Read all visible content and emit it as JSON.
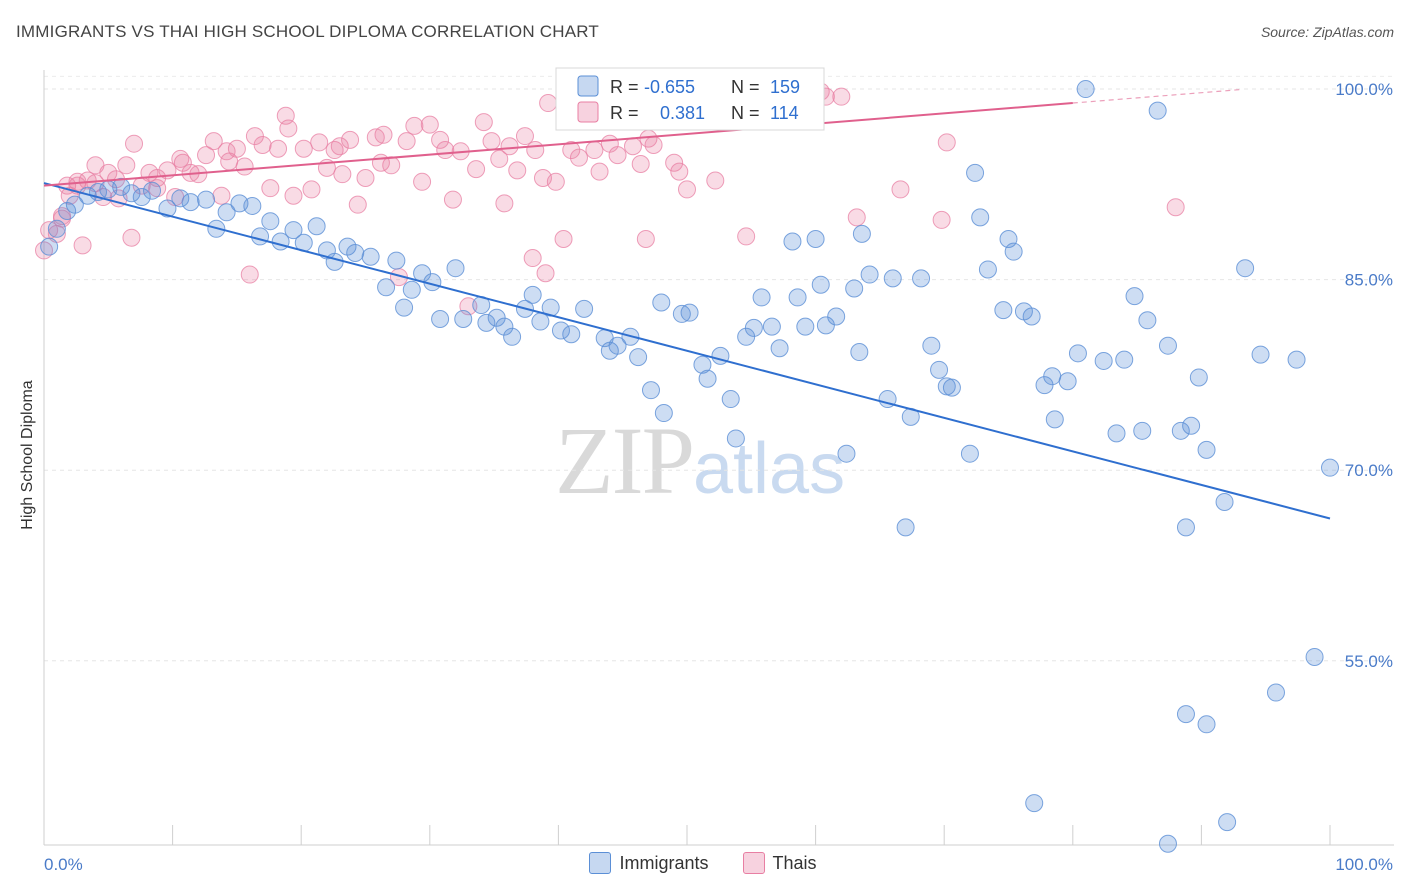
{
  "header": {
    "title": "IMMIGRANTS VS THAI HIGH SCHOOL DIPLOMA CORRELATION CHART",
    "source": "Source: ZipAtlas.com"
  },
  "watermark": {
    "zip": "ZIP",
    "atlas": "atlas"
  },
  "colors": {
    "immigrants": "#5b8fd6",
    "thais": "#e87fa3",
    "immigrants_line": "#2f6fcf",
    "thais_line": "#e0608d",
    "tick": "#4a7bc8"
  },
  "legend": {
    "immigrants": {
      "r_label": "R =",
      "r_value": "-0.655",
      "n_label": "N =",
      "n_value": "159"
    },
    "thais": {
      "r_label": "R =",
      "r_value": "0.381",
      "n_label": "N =",
      "n_value": "114"
    }
  },
  "bottom_legend": {
    "immigrants": "Immigrants",
    "thais": "Thais"
  },
  "chart_data": {
    "type": "scatter",
    "title": "IMMIGRANTS VS THAI HIGH SCHOOL DIPLOMA CORRELATION CHART",
    "xlabel": "",
    "ylabel": "High School Diploma",
    "xlim": [
      0,
      100
    ],
    "ylim": [
      40.5,
      101.5
    ],
    "x_tick_labels": [
      "0.0%",
      "100.0%"
    ],
    "y_ticks": [
      100,
      85,
      70,
      55
    ],
    "y_tick_labels": [
      "100.0%",
      "85.0%",
      "70.0%",
      "55.0%"
    ],
    "grid": true,
    "legend_position": "top-center",
    "series": [
      {
        "name": "Immigrants",
        "r": -0.655,
        "n": 159,
        "trend": {
          "x": [
            0,
            100
          ],
          "y": [
            92.6,
            66.2
          ]
        },
        "points": [
          [
            0.4,
            87.6
          ],
          [
            1.0,
            89.0
          ],
          [
            1.8,
            90.4
          ],
          [
            2.4,
            90.9
          ],
          [
            3.4,
            91.6
          ],
          [
            4.2,
            91.9
          ],
          [
            5.0,
            92.1
          ],
          [
            6.0,
            92.3
          ],
          [
            6.8,
            91.8
          ],
          [
            7.6,
            91.5
          ],
          [
            8.4,
            92.0
          ],
          [
            9.6,
            90.6
          ],
          [
            10.6,
            91.4
          ],
          [
            11.4,
            91.1
          ],
          [
            12.6,
            91.3
          ],
          [
            13.4,
            89.0
          ],
          [
            14.2,
            90.3
          ],
          [
            15.2,
            91.0
          ],
          [
            16.2,
            90.8
          ],
          [
            16.8,
            88.4
          ],
          [
            17.6,
            89.6
          ],
          [
            18.4,
            88.0
          ],
          [
            19.4,
            88.9
          ],
          [
            20.2,
            87.9
          ],
          [
            21.2,
            89.2
          ],
          [
            22.0,
            87.3
          ],
          [
            22.6,
            86.4
          ],
          [
            23.6,
            87.6
          ],
          [
            24.2,
            87.1
          ],
          [
            25.4,
            86.8
          ],
          [
            26.6,
            84.4
          ],
          [
            27.4,
            86.5
          ],
          [
            28.6,
            84.2
          ],
          [
            28.0,
            82.8
          ],
          [
            29.4,
            85.5
          ],
          [
            30.2,
            84.8
          ],
          [
            30.8,
            81.9
          ],
          [
            32.0,
            85.9
          ],
          [
            32.6,
            81.9
          ],
          [
            34.0,
            83.0
          ],
          [
            34.4,
            81.6
          ],
          [
            35.2,
            82.0
          ],
          [
            35.8,
            81.3
          ],
          [
            36.4,
            80.5
          ],
          [
            37.4,
            82.7
          ],
          [
            38.0,
            83.8
          ],
          [
            38.6,
            81.7
          ],
          [
            39.4,
            82.8
          ],
          [
            40.2,
            81.0
          ],
          [
            41.0,
            80.7
          ],
          [
            42.0,
            82.7
          ],
          [
            43.6,
            80.4
          ],
          [
            44.0,
            79.4
          ],
          [
            44.6,
            79.8
          ],
          [
            45.6,
            80.5
          ],
          [
            46.2,
            78.9
          ],
          [
            47.2,
            76.3
          ],
          [
            48.0,
            83.2
          ],
          [
            48.2,
            74.5
          ],
          [
            49.6,
            82.3
          ],
          [
            50.2,
            82.4
          ],
          [
            51.2,
            78.3
          ],
          [
            51.6,
            77.2
          ],
          [
            52.6,
            79.0
          ],
          [
            53.4,
            75.6
          ],
          [
            53.8,
            72.5
          ],
          [
            54.6,
            80.5
          ],
          [
            55.2,
            81.2
          ],
          [
            55.8,
            83.6
          ],
          [
            56.6,
            81.3
          ],
          [
            57.2,
            79.6
          ],
          [
            58.2,
            88.0
          ],
          [
            58.6,
            83.6
          ],
          [
            59.2,
            81.3
          ],
          [
            60.0,
            88.2
          ],
          [
            60.4,
            84.6
          ],
          [
            60.8,
            81.4
          ],
          [
            61.6,
            82.1
          ],
          [
            62.4,
            71.3
          ],
          [
            63.0,
            84.3
          ],
          [
            63.4,
            79.3
          ],
          [
            63.6,
            88.6
          ],
          [
            64.2,
            85.4
          ],
          [
            65.6,
            75.6
          ],
          [
            66.0,
            85.1
          ],
          [
            67.0,
            65.5
          ],
          [
            67.4,
            74.2
          ],
          [
            68.2,
            85.1
          ],
          [
            69.0,
            79.8
          ],
          [
            69.6,
            77.9
          ],
          [
            70.2,
            76.6
          ],
          [
            70.6,
            76.5
          ],
          [
            72.0,
            71.3
          ],
          [
            72.4,
            93.4
          ],
          [
            72.8,
            89.9
          ],
          [
            73.4,
            85.8
          ],
          [
            74.6,
            82.6
          ],
          [
            75.0,
            88.2
          ],
          [
            75.4,
            87.2
          ],
          [
            76.2,
            82.5
          ],
          [
            76.8,
            82.1
          ],
          [
            77.8,
            76.7
          ],
          [
            78.4,
            77.4
          ],
          [
            78.6,
            74.0
          ],
          [
            79.6,
            77.0
          ],
          [
            80.4,
            79.2
          ],
          [
            81.0,
            100.0
          ],
          [
            82.4,
            78.6
          ],
          [
            83.4,
            72.9
          ],
          [
            84.0,
            78.7
          ],
          [
            84.8,
            83.7
          ],
          [
            85.4,
            73.1
          ],
          [
            85.8,
            81.8
          ],
          [
            86.6,
            98.3
          ],
          [
            87.4,
            79.8
          ],
          [
            88.4,
            73.1
          ],
          [
            88.8,
            65.5
          ],
          [
            89.2,
            73.5
          ],
          [
            89.8,
            77.3
          ],
          [
            90.4,
            71.6
          ],
          [
            91.8,
            67.5
          ],
          [
            93.4,
            85.9
          ],
          [
            94.6,
            79.1
          ],
          [
            97.4,
            78.7
          ],
          [
            100.0,
            70.2
          ],
          [
            77.0,
            43.8
          ],
          [
            87.4,
            40.6
          ],
          [
            88.8,
            50.8
          ],
          [
            90.4,
            50.0
          ],
          [
            92.0,
            42.3
          ],
          [
            95.8,
            52.5
          ],
          [
            98.8,
            55.3
          ]
        ]
      },
      {
        "name": "Thais",
        "r": 0.381,
        "n": 114,
        "trend": {
          "x": [
            0,
            80
          ],
          "y": [
            92.4,
            98.9
          ]
        },
        "points": [
          [
            0.0,
            87.3
          ],
          [
            0.4,
            88.9
          ],
          [
            1.0,
            88.6
          ],
          [
            1.4,
            89.8
          ],
          [
            2.0,
            91.6
          ],
          [
            2.6,
            92.4
          ],
          [
            3.0,
            87.7
          ],
          [
            3.4,
            92.8
          ],
          [
            4.0,
            92.6
          ],
          [
            4.6,
            91.5
          ],
          [
            5.0,
            93.4
          ],
          [
            5.6,
            92.9
          ],
          [
            6.4,
            94.0
          ],
          [
            7.0,
            95.7
          ],
          [
            7.6,
            92.4
          ],
          [
            8.2,
            93.4
          ],
          [
            8.8,
            93.0
          ],
          [
            9.6,
            93.6
          ],
          [
            10.2,
            91.5
          ],
          [
            10.8,
            94.2
          ],
          [
            11.4,
            93.4
          ],
          [
            12.0,
            93.3
          ],
          [
            12.6,
            94.8
          ],
          [
            13.2,
            95.9
          ],
          [
            13.8,
            91.6
          ],
          [
            14.4,
            94.3
          ],
          [
            15.0,
            95.3
          ],
          [
            15.6,
            93.9
          ],
          [
            16.4,
            96.3
          ],
          [
            17.0,
            95.6
          ],
          [
            17.6,
            92.2
          ],
          [
            18.2,
            95.3
          ],
          [
            18.8,
            97.9
          ],
          [
            19.4,
            91.6
          ],
          [
            20.2,
            95.3
          ],
          [
            20.8,
            92.1
          ],
          [
            21.4,
            95.8
          ],
          [
            22.0,
            93.8
          ],
          [
            22.6,
            95.2
          ],
          [
            23.2,
            93.3
          ],
          [
            23.8,
            96.0
          ],
          [
            24.4,
            90.9
          ],
          [
            25.0,
            93.0
          ],
          [
            25.8,
            96.2
          ],
          [
            26.4,
            96.4
          ],
          [
            27.0,
            94.0
          ],
          [
            27.6,
            85.2
          ],
          [
            28.2,
            95.9
          ],
          [
            28.8,
            97.1
          ],
          [
            29.4,
            92.7
          ],
          [
            30.0,
            97.2
          ],
          [
            30.8,
            96.0
          ],
          [
            31.2,
            95.2
          ],
          [
            31.8,
            91.3
          ],
          [
            32.4,
            95.1
          ],
          [
            33.0,
            82.9
          ],
          [
            33.6,
            93.7
          ],
          [
            34.2,
            97.4
          ],
          [
            34.8,
            95.9
          ],
          [
            35.4,
            94.5
          ],
          [
            36.2,
            95.5
          ],
          [
            36.8,
            93.6
          ],
          [
            37.4,
            96.3
          ],
          [
            38.2,
            95.2
          ],
          [
            38.8,
            93.0
          ],
          [
            39.2,
            98.9
          ],
          [
            39.8,
            92.7
          ],
          [
            40.4,
            88.2
          ],
          [
            41.0,
            95.2
          ],
          [
            41.6,
            94.6
          ],
          [
            42.2,
            97.6
          ],
          [
            42.8,
            95.2
          ],
          [
            43.4,
            98.6
          ],
          [
            44.0,
            95.7
          ],
          [
            44.6,
            94.8
          ],
          [
            45.2,
            99.8
          ],
          [
            45.8,
            95.5
          ],
          [
            46.4,
            94.1
          ],
          [
            47.0,
            96.1
          ],
          [
            47.4,
            95.6
          ],
          [
            48.4,
            99.1
          ],
          [
            49.0,
            94.2
          ],
          [
            50.0,
            92.1
          ],
          [
            51.0,
            98.0
          ],
          [
            53.0,
            99.0
          ],
          [
            58.6,
            99.5
          ],
          [
            60.4,
            99.8
          ],
          [
            60.8,
            99.4
          ],
          [
            66.6,
            92.1
          ],
          [
            69.8,
            89.7
          ],
          [
            70.2,
            95.8
          ],
          [
            23.0,
            95.5
          ],
          [
            19.0,
            96.9
          ],
          [
            14.2,
            95.1
          ],
          [
            10.6,
            94.5
          ],
          [
            8.8,
            92.2
          ],
          [
            5.8,
            91.4
          ],
          [
            4.0,
            94.0
          ],
          [
            1.8,
            92.4
          ],
          [
            2.6,
            92.7
          ],
          [
            1.4,
            90.0
          ],
          [
            6.8,
            88.3
          ],
          [
            26.2,
            94.2
          ],
          [
            16.0,
            85.4
          ],
          [
            39.0,
            85.5
          ],
          [
            38.0,
            86.7
          ],
          [
            35.8,
            91.0
          ],
          [
            46.8,
            88.2
          ],
          [
            43.2,
            93.5
          ],
          [
            49.4,
            93.5
          ],
          [
            52.2,
            92.8
          ],
          [
            88.0,
            90.7
          ],
          [
            62.0,
            99.4
          ],
          [
            63.2,
            89.9
          ],
          [
            54.6,
            88.4
          ]
        ]
      }
    ]
  }
}
